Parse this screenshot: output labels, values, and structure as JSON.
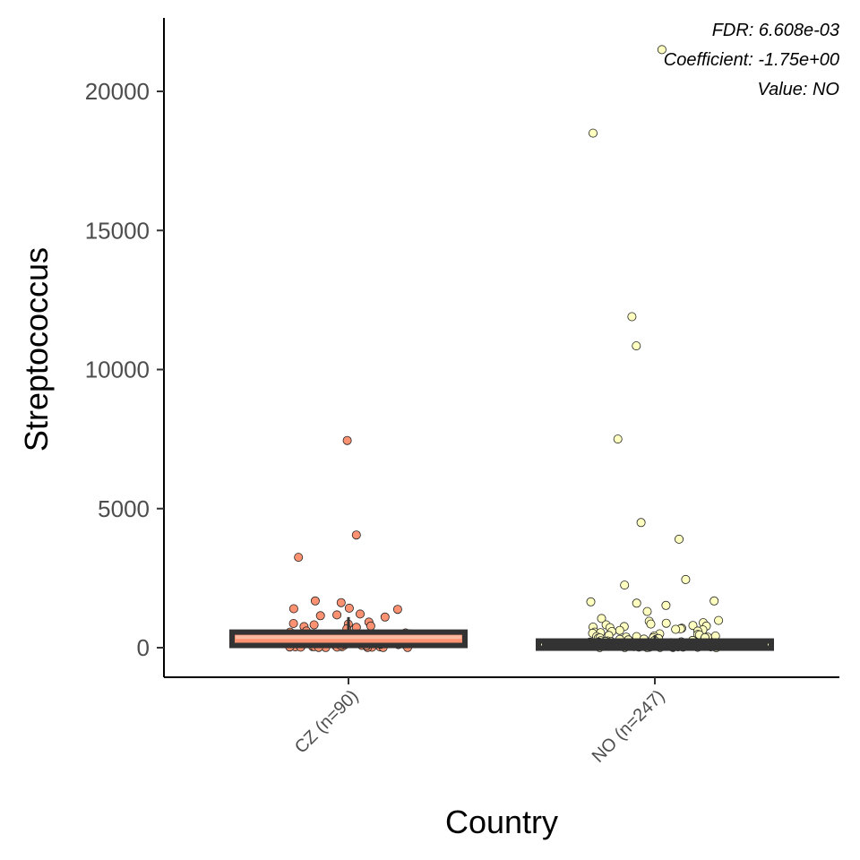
{
  "chart_data": {
    "type": "box",
    "xlabel": "Country",
    "ylabel": "Streptococcus",
    "ylim": [
      -1050,
      22700
    ],
    "yticks": [
      0,
      5000,
      10000,
      15000,
      20000
    ],
    "yticklabels": [
      "0",
      "5000",
      "10000",
      "15000",
      "20000"
    ],
    "categories": [
      "CZ (n=90)",
      "NO (n=247)"
    ],
    "annotations": [
      "FDR: 6.608e-03",
      "Coefficient: -1.75e+00",
      "Value: NO"
    ],
    "colors": {
      "CZ": "#fc9272",
      "NO": "#ffffbf",
      "box_line": "#333333",
      "cz_median": "#fcbba1"
    },
    "series": [
      {
        "category": "CZ (n=90)",
        "box": {
          "q1": 80,
          "median": 380,
          "q3": 560,
          "whisker_low": 0,
          "whisker_high": 1100
        },
        "outliers": [
          7450,
          4050,
          3250,
          1680,
          1620,
          1420,
          1400,
          1380,
          1210,
          1180,
          1150,
          1100,
          920,
          870,
          850,
          820,
          780,
          760,
          730,
          680
        ],
        "points": [
          600,
          560,
          530,
          500,
          480,
          460,
          440,
          420,
          400,
          380,
          360,
          340,
          320,
          300,
          280,
          260,
          240,
          220,
          200,
          180,
          160,
          150,
          140,
          130,
          120,
          110,
          100,
          90,
          80,
          70,
          60,
          50,
          45,
          40,
          35,
          30,
          25,
          20,
          15,
          10,
          8,
          5,
          300,
          250,
          200,
          150,
          100,
          80,
          60,
          40,
          30,
          20,
          10,
          5,
          350,
          280,
          220,
          180,
          120,
          70
        ]
      },
      {
        "category": "NO (n=247)",
        "box": {
          "q1": 20,
          "median": 90,
          "q3": 240,
          "whisker_low": 0,
          "whisker_high": 450
        },
        "outliers": [
          21500,
          18500,
          11900,
          10850,
          7500,
          4500,
          3900,
          2450,
          2250,
          1680,
          1650,
          1600,
          1520,
          1300,
          1050,
          980,
          950,
          900,
          880,
          850,
          820,
          800,
          780,
          760,
          740,
          720,
          700,
          680,
          660,
          640,
          620,
          600,
          580,
          560,
          540,
          520,
          500,
          480,
          460
        ],
        "points": [
          440,
          420,
          400,
          380,
          360,
          340,
          320,
          300,
          280,
          260,
          240,
          220,
          200,
          180,
          160,
          140,
          120,
          100,
          90,
          80,
          70,
          60,
          50,
          40,
          30,
          20,
          10,
          5,
          400,
          350,
          300,
          250,
          200,
          150,
          100,
          80,
          60,
          40,
          20,
          10,
          380,
          330,
          280,
          230,
          180,
          130,
          90,
          50,
          30,
          15,
          420,
          360,
          310,
          260,
          210,
          170,
          110,
          70,
          45,
          25,
          12,
          6,
          3,
          1
        ]
      }
    ]
  }
}
